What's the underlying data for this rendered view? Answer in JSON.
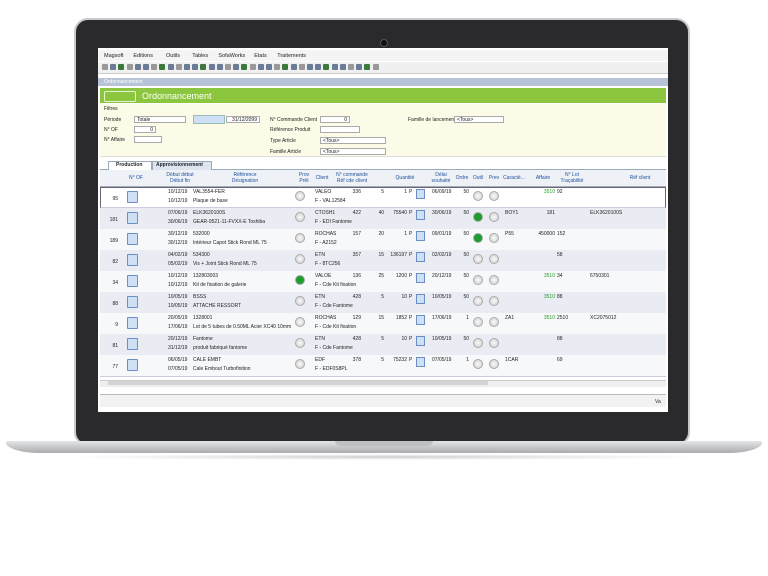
{
  "menu": [
    "Magsoft",
    "Editions",
    "Outils",
    "Tables",
    "SofaWorks",
    "Etats",
    "Traitements"
  ],
  "window_title": "Ordonnancement",
  "banner_title": "Ordonnancement",
  "filters": {
    "heading": "Filtres",
    "fields": [
      {
        "label": "Période",
        "value": "Totale"
      },
      {
        "value": "31/12/2099"
      },
      {
        "label": "N° OF",
        "value": "0"
      },
      {
        "label": "N° Affaire"
      },
      {
        "label": "N° Commande Client",
        "value": "0"
      },
      {
        "label": "Référence Produit"
      },
      {
        "label": "Type Article",
        "value": "<Tous>"
      },
      {
        "label": "Famille Article",
        "value": "<Tous>"
      },
      {
        "label": "Famille de lancement",
        "value": "<Tous>"
      }
    ]
  },
  "tabs": [
    "Production",
    "Approvisionnement"
  ],
  "table": {
    "headers": [
      [
        "N° OF"
      ],
      [
        "Début début",
        "Début fin"
      ],
      [
        "Référence",
        "Désignation"
      ],
      [
        "Prov",
        "Prêt"
      ],
      [
        "Client"
      ],
      [
        "N° commande",
        "Réf cde client"
      ],
      [
        "Quantité"
      ],
      [
        "Délai",
        "souhaité"
      ],
      [
        "Ordre"
      ],
      [
        "Outil"
      ],
      [
        "Prev"
      ],
      [
        "Caracté..."
      ],
      [
        "Affaire"
      ],
      [
        "N° Lot",
        "Traçabilité"
      ],
      [
        "Réf client"
      ]
    ],
    "rows": [
      {
        "of": "95",
        "d1": "10/12/19",
        "d2": "10/12/19",
        "ref": "VAL3554-FER",
        "des": "Plaque de base",
        "client": "VALEO",
        "cmd": "336",
        "qty": "5",
        "refcde": "F - VAL12584",
        "quantite": "1",
        "unite": "P",
        "delai": "06/09/19",
        "ordre": "50",
        "affaire": "3510",
        "lot": "92"
      },
      {
        "of": "181",
        "d1": "07/06/19",
        "d2": "30/06/19",
        "ref": "ELK3620100S",
        "des": "GEAR-9521-11-FVXX-E Toshiba",
        "client": "CTOSH1",
        "cmd": "422",
        "qty": "40",
        "refcde": "F - EDI Fantome",
        "quantite": "75540",
        "unite": "P",
        "delai": "30/06/19",
        "ordre": "50",
        "outil_color": "#1e9c2e",
        "caract": "BOY1",
        "affaire": "181",
        "refclient": "ELK3620100S"
      },
      {
        "of": "189",
        "d1": "30/12/19",
        "d2": "30/12/19",
        "ref": "532000",
        "des": "Intérieur Capot Stick Rond ML 75",
        "client": "ROCHAS",
        "cmd": "157",
        "qty": "20",
        "refcde": "F - A2152",
        "quantite": "1",
        "unite": "P",
        "delai": "09/01/19",
        "ordre": "50",
        "outil_color": "#1e9c2e",
        "caract": "P55",
        "affaire": "450000",
        "lot": "152"
      },
      {
        "of": "82",
        "d1": "04/02/19",
        "d2": "05/02/19",
        "ref": "534300",
        "des": "Vis + Joint Stick Rond ML 75",
        "client": "ETN",
        "cmd": "357",
        "qty": "15",
        "refcde": "F - 8TC256",
        "quantite": "136197",
        "unite": "P",
        "delai": "02/02/19",
        "ordre": "50",
        "lot": "58"
      },
      {
        "of": "34",
        "d1": "10/12/19",
        "d2": "10/12/19",
        "ref": "132803003",
        "des": "Kit de fixation de galerie",
        "client": "VALOE",
        "cmd": "136",
        "qty": "25",
        "refcde": "F - Cde Kit fixation",
        "quantite": "1200",
        "unite": "P",
        "delai": "20/12/19",
        "ordre": "50",
        "prov_color": "#1e9c2e",
        "affaire": "3510",
        "lot": "34",
        "refclient": "6750301"
      },
      {
        "of": "88",
        "d1": "10/05/19",
        "d2": "10/05/19",
        "ref": "BSSS",
        "des": "ATTACHE RESSORT",
        "client": "ETN",
        "cmd": "428",
        "qty": "5",
        "refcde": "F - Cde Fantome",
        "quantite": "10",
        "unite": "P",
        "delai": "10/05/19",
        "ordre": "50",
        "affaire": "3510",
        "lot": "88"
      },
      {
        "of": "9",
        "d1": "20/05/19",
        "d2": "17/06/19",
        "ref": "1328001",
        "des": "Lot de 5 tubes de 0.50ML Acier XC40 10mm",
        "client": "ROCHAS",
        "cmd": "129",
        "qty": "15",
        "refcde": "F - Cde Kit fixation",
        "quantite": "1852",
        "unite": "P",
        "delai": "17/06/19",
        "ordre": "1",
        "caract": "ZA1",
        "affaire": "3510",
        "lot": "2510",
        "refclient": "XC2075012"
      },
      {
        "of": "81",
        "d1": "20/12/19",
        "d2": "31/12/19",
        "ref": "Fantome",
        "des": "produit fabriqué fantome",
        "client": "ETN",
        "cmd": "428",
        "qty": "5",
        "refcde": "F - Cde Fantome",
        "quantite": "10",
        "unite": "P",
        "delai": "10/05/19",
        "ordre": "50",
        "lot": "88"
      },
      {
        "of": "77",
        "d1": "06/05/19",
        "d2": "07/05/19",
        "ref": "CALE EMBT",
        "des": "Cale Embout Turbofinition",
        "client": "EDF",
        "cmd": "378",
        "qty": "5",
        "refcde": "F - EDF0S8PL",
        "quantite": "75232",
        "unite": "P",
        "delai": "07/05/19",
        "ordre": "1",
        "caract": "1CAR",
        "lot": "69"
      }
    ]
  },
  "status_bar": "Va"
}
